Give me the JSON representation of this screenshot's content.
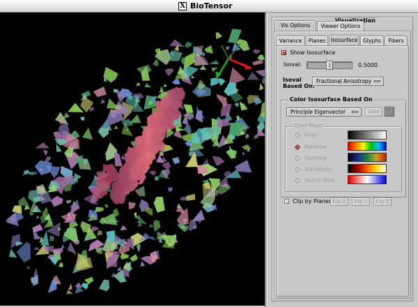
{
  "window": {
    "title": "BioTensor",
    "icon": "x-window-icon"
  },
  "panel": {
    "title": "Visualization",
    "top_tabs": [
      {
        "label": "Vis Options",
        "active": true
      },
      {
        "label": "Viewer Options",
        "active": false
      }
    ],
    "sub_tabs": [
      {
        "label": "Variance",
        "active": false
      },
      {
        "label": "Planes",
        "active": false
      },
      {
        "label": "Isosurface",
        "active": true
      },
      {
        "label": "Glyphs",
        "active": false
      },
      {
        "label": "Fibers",
        "active": false
      }
    ],
    "show_isosurface": {
      "label": "Show Isosurface",
      "checked": true
    },
    "isoval": {
      "label": "Isoval:",
      "value": "0.5000",
      "level": 0.5
    },
    "isoval_based_on": {
      "label_line1": "Isoval",
      "label_line2": "Based On:",
      "selected": "Fractional Anisotropy"
    },
    "color_group": {
      "title": "Color Isosurface Based On",
      "selected": "Principle Eigenvector",
      "color_button": "Color",
      "colormaps_title": "Color Maps",
      "colormaps": [
        {
          "label": "Gray",
          "selected": false
        },
        {
          "label": "Rainbow",
          "selected": true
        },
        {
          "label": "Darkhue",
          "selected": false
        },
        {
          "label": "Blackbody",
          "selected": false
        },
        {
          "label": "Red-to-Blue",
          "selected": false
        }
      ]
    },
    "clip": {
      "label": "Clip by Planes",
      "checked": false,
      "buttons": [
        "Flip X",
        "Flip Y",
        "Flip Z"
      ]
    }
  },
  "axes_colors": {
    "x": "#e02020",
    "y": "#20c020",
    "z": "#1a2aa0"
  }
}
